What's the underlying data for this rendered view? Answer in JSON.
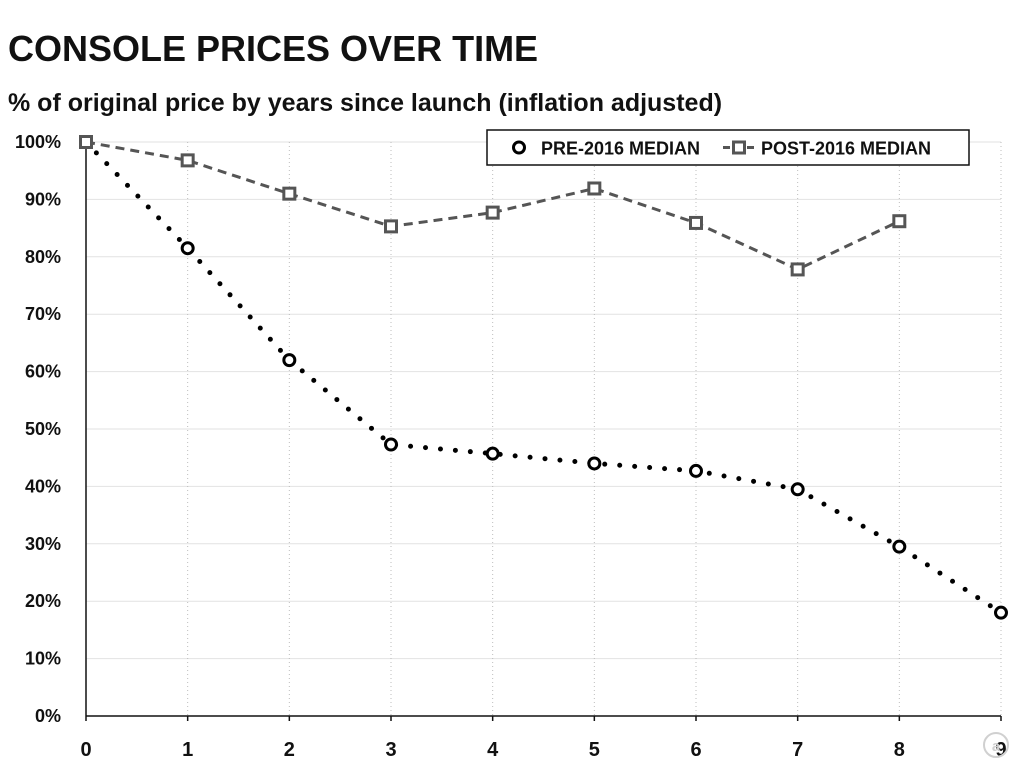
{
  "chart_data": {
    "type": "line",
    "title": "CONSOLE PRICES OVER TIME",
    "subtitle": "% of original price by years since launch (inflation adjusted)",
    "xlabel": "",
    "ylabel": "",
    "x": [
      0,
      1,
      2,
      3,
      4,
      5,
      6,
      7,
      8,
      9
    ],
    "xlim": [
      0,
      9
    ],
    "ylim": [
      0,
      100
    ],
    "xticks": [
      "0",
      "1",
      "2",
      "3",
      "4",
      "5",
      "6",
      "7",
      "8",
      "9"
    ],
    "yticks": [
      "0%",
      "10%",
      "20%",
      "30%",
      "40%",
      "50%",
      "60%",
      "70%",
      "80%",
      "90%",
      "100%"
    ],
    "grid": true,
    "legend_position": "top-right",
    "series": [
      {
        "name": "PRE-2016 MEDIAN",
        "marker": "circle",
        "line_style": "dotted",
        "color": "#000000",
        "values": [
          100,
          81.5,
          62,
          47.3,
          45.7,
          44,
          42.7,
          39.5,
          29.5,
          18
        ]
      },
      {
        "name": "POST-2016 MEDIAN",
        "marker": "square",
        "line_style": "dashed",
        "color": "#555555",
        "values": [
          100,
          96.8,
          91,
          85.3,
          87.7,
          91.9,
          85.9,
          77.8,
          86.2,
          null
        ]
      }
    ]
  },
  "watermark": {
    "icon": "a-circle-logo-icon"
  }
}
